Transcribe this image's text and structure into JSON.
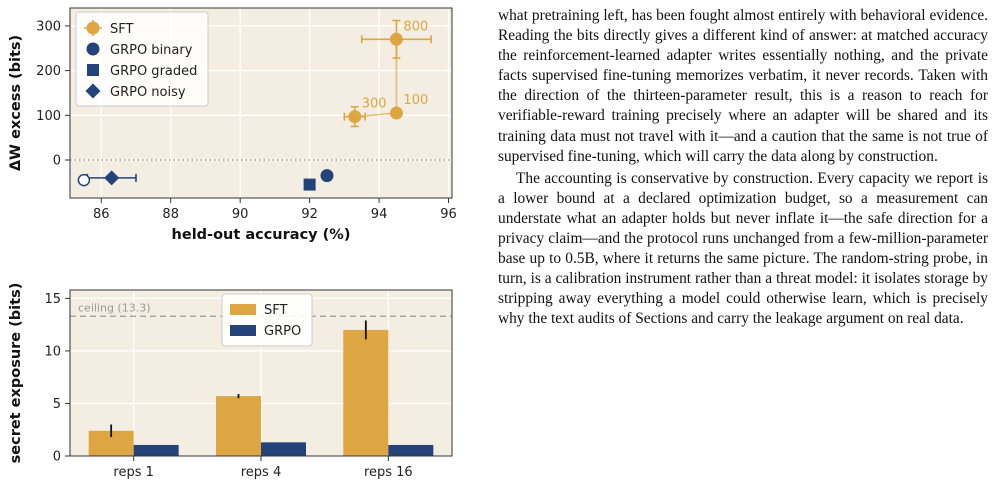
{
  "figure": {
    "top_chart": {
      "type": "scatter",
      "xlabel": "held-out accuracy (%)",
      "ylabel": "ΔW excess (bits)",
      "x_ticks": [
        "86",
        "88",
        "90",
        "92",
        "94",
        "96"
      ],
      "y_ticks": [
        "0",
        "100",
        "200",
        "300"
      ],
      "xlim": [
        85.1,
        96.1
      ],
      "ylim": [
        -85,
        340
      ],
      "grid": true,
      "reference_line_y": 0,
      "legend_position": "top-left",
      "legend": [
        {
          "label": "SFT",
          "marker": "circle",
          "color": "#dda642"
        },
        {
          "label": "GRPO binary",
          "marker": "circle",
          "color": "#24437a"
        },
        {
          "label": "GRPO graded",
          "marker": "square",
          "color": "#24437a"
        },
        {
          "label": "GRPO noisy",
          "marker": "diamond",
          "color": "#24437a"
        }
      ],
      "series": [
        {
          "name": "SFT",
          "color": "#dda642",
          "marker": "circle",
          "points": [
            {
              "x": 93.3,
              "y": 97,
              "xerr": 0.3,
              "yerr": 22,
              "label": "300"
            },
            {
              "x": 94.5,
              "y": 105,
              "xerr": 0,
              "yerr": 0,
              "label": "100"
            },
            {
              "x": 94.5,
              "y": 270,
              "xerr": 1.0,
              "yerr": 42,
              "label": "800"
            }
          ]
        },
        {
          "name": "GRPO binary",
          "color": "#24437a",
          "marker": "circle",
          "points": [
            {
              "x": 92.5,
              "y": -35,
              "xerr": 0,
              "yerr": 0
            }
          ]
        },
        {
          "name": "GRPO graded",
          "color": "#24437a",
          "marker": "square",
          "points": [
            {
              "x": 92.0,
              "y": -55,
              "xerr": 0,
              "yerr": 0
            }
          ]
        },
        {
          "name": "GRPO noisy",
          "color": "#24437a",
          "marker": "diamond",
          "points": [
            {
              "x": 86.3,
              "y": -40,
              "xerr": 0.7,
              "yerr": 0
            }
          ]
        },
        {
          "name": "",
          "color": "#24437a",
          "marker": "open-circle",
          "points": [
            {
              "x": 85.5,
              "y": -45,
              "xerr": 0,
              "yerr": 0
            }
          ]
        }
      ]
    },
    "bottom_chart": {
      "type": "bar",
      "ylabel": "secret exposure (bits)",
      "categories": [
        "reps 1",
        "reps 4",
        "reps 16"
      ],
      "y_ticks": [
        "0",
        "5",
        "10",
        "15"
      ],
      "ylim": [
        0,
        15.8
      ],
      "grid": true,
      "ceiling": {
        "value": 13.3,
        "label": "ceiling (13.3)"
      },
      "legend_position": "top-center",
      "series": [
        {
          "name": "SFT",
          "color": "#dda642",
          "values": [
            2.4,
            5.7,
            12.0
          ],
          "errors": [
            0.6,
            0.2,
            0.9
          ]
        },
        {
          "name": "GRPO",
          "color": "#24437a",
          "values": [
            1.05,
            1.3,
            1.05
          ],
          "errors": [
            0,
            0,
            0
          ]
        }
      ]
    }
  },
  "text": {
    "paragraphs": [
      "what pretraining left, has been fought almost entirely with behavioral evidence. Reading the bits directly gives a different kind of answer: at matched accuracy the reinforcement-learned adapter writes essentially nothing, and the private facts supervised fine-tuning memorizes verbatim, it never records. Taken with the direction of the thirteen-parameter result, this is a reason to reach for verifiable-reward training precisely where an adapter will be shared and its training data must not travel with it—and a caution that the same is not true of supervised fine-tuning, which will carry the data along by construction.",
      "The accounting is conservative by construction. Every capacity we report is a lower bound at a declared optimization budget, so a measurement can understate what an adapter holds but never inflate it—the safe direction for a privacy claim—and the protocol runs unchanged from a few-million-parameter base up to 0.5B, where it returns the same picture. The random-string probe, in turn, is a calibration instrument rather than a threat model: it isolates storage by stripping away everything a model could otherwise learn, which is precisely why the text audits of Sections  and  carry the leakage argument on real data."
    ]
  }
}
